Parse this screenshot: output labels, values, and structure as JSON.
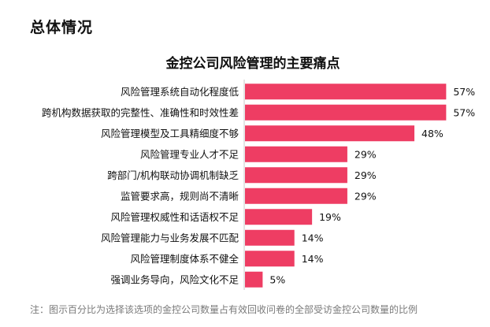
{
  "section": {
    "title": "总体情况"
  },
  "note": "注：图示百分比为选择该选项的金控公司数量占有效回收问卷的全部受访金控公司数量的比例",
  "chart_data": {
    "type": "bar",
    "orientation": "horizontal",
    "title": "金控公司风险管理的主要痛点",
    "xlabel": "",
    "ylabel": "",
    "unit": "%",
    "xlim": [
      0,
      60
    ],
    "grid": false,
    "bar_color": "#EE3D63",
    "categories": [
      "风险管理系统自动化程度低",
      "跨机构数据获取的完整性、准确性和时效性差",
      "风险管理模型及工具精细度不够",
      "风险管理专业人才不足",
      "跨部门/机构联动协调机制缺乏",
      "监管要求高，规则尚不清晰",
      "风险管理权威性和话语权不足",
      "风险管理能力与业务发展不匹配",
      "风险管理制度体系不健全",
      "强调业务导向，风险文化不足"
    ],
    "values": [
      57,
      57,
      48,
      29,
      29,
      29,
      19,
      14,
      14,
      5
    ],
    "value_labels": [
      "57%",
      "57%",
      "48%",
      "29%",
      "29%",
      "29%",
      "19%",
      "14%",
      "14%",
      "5%"
    ]
  }
}
